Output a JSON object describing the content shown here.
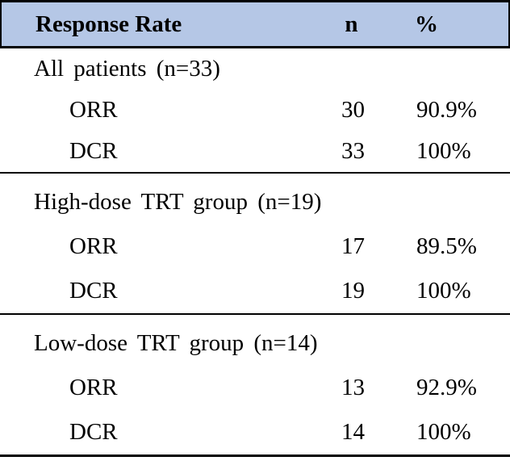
{
  "table": {
    "header": {
      "response_rate": "Response Rate",
      "n": "n",
      "percent": "%"
    },
    "sections": [
      {
        "group": "All patients (n=33)",
        "rows": [
          {
            "label": "ORR",
            "n": "30",
            "pct": "90.9%"
          },
          {
            "label": "DCR",
            "n": "33",
            "pct": "100%"
          }
        ]
      },
      {
        "group": "High-dose TRT group (n=19)",
        "rows": [
          {
            "label": "ORR",
            "n": "17",
            "pct": "89.5%"
          },
          {
            "label": "DCR",
            "n": "19",
            "pct": "100%"
          }
        ]
      },
      {
        "group": "Low-dose TRT group (n=14)",
        "rows": [
          {
            "label": "ORR",
            "n": "13",
            "pct": "92.9%"
          },
          {
            "label": "DCR",
            "n": "14",
            "pct": "100%"
          }
        ]
      }
    ],
    "colors": {
      "header_bg": "#b5c7e6",
      "border": "#000000"
    }
  },
  "chart_data": {
    "type": "table",
    "title": "Response Rate",
    "columns": [
      "Response Rate",
      "n",
      "%"
    ],
    "rows": [
      [
        "All patients (n=33)",
        "",
        ""
      ],
      [
        "ORR",
        "30",
        "90.9%"
      ],
      [
        "DCR",
        "33",
        "100%"
      ],
      [
        "High-dose TRT group (n=19)",
        "",
        ""
      ],
      [
        "ORR",
        "17",
        "89.5%"
      ],
      [
        "DCR",
        "19",
        "100%"
      ],
      [
        "Low-dose TRT group (n=14)",
        "",
        ""
      ],
      [
        "ORR",
        "13",
        "92.9%"
      ],
      [
        "DCR",
        "14",
        "100%"
      ]
    ]
  }
}
